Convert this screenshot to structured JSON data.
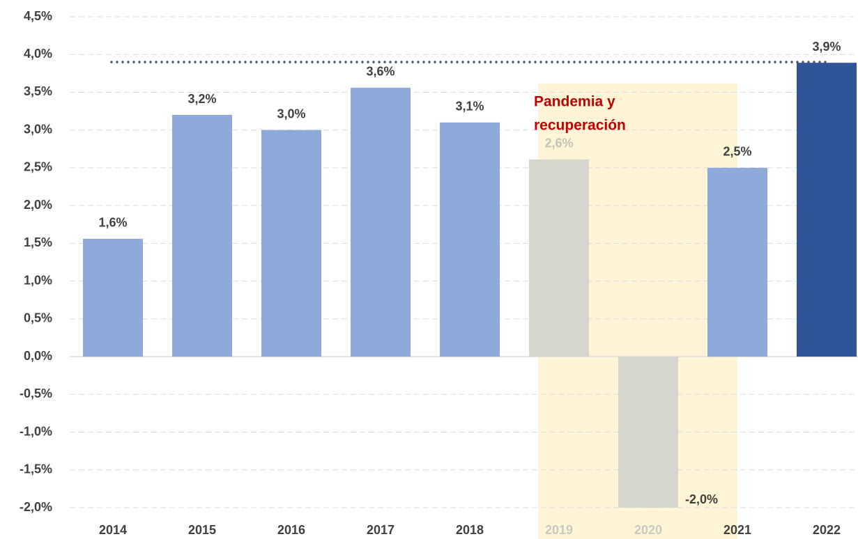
{
  "chart_data": {
    "type": "bar",
    "categories": [
      "2014",
      "2015",
      "2016",
      "2017",
      "2018",
      "2019",
      "2020",
      "2021",
      "2022"
    ],
    "values": [
      1.56,
      3.2,
      3.0,
      3.56,
      3.1,
      2.61,
      -2.0,
      2.5,
      3.89
    ],
    "value_labels": [
      "1,6%",
      "3,2%",
      "3,0%",
      "3,6%",
      "3,1%",
      "2,6%",
      "-2,0%",
      "2,5%",
      "3,9%"
    ],
    "colors": [
      "#8eaadb",
      "#8eaadb",
      "#8eaadb",
      "#8eaadb",
      "#8eaadb",
      "#d6d6ce",
      "#d6d6ce",
      "#8eaadb",
      "#2f5597"
    ],
    "label_colors": [
      "#404040",
      "#404040",
      "#404040",
      "#404040",
      "#404040",
      "#c4c2b6",
      "#404040",
      "#404040",
      "#404040"
    ],
    "category_colors": [
      "#404040",
      "#404040",
      "#404040",
      "#404040",
      "#404040",
      "#c8c8c8",
      "#c8c8c8",
      "#404040",
      "#404040"
    ],
    "ylim": [
      -2.0,
      4.5
    ],
    "yticks": [
      {
        "value": -2.0,
        "label": "-2,0%"
      },
      {
        "value": -1.5,
        "label": "-1,5%"
      },
      {
        "value": -1.0,
        "label": "-1,0%"
      },
      {
        "value": -0.5,
        "label": "-0,5%"
      },
      {
        "value": 0.0,
        "label": "0,0%"
      },
      {
        "value": 0.5,
        "label": "0,5%"
      },
      {
        "value": 1.0,
        "label": "1,0%"
      },
      {
        "value": 1.5,
        "label": "1,5%"
      },
      {
        "value": 2.0,
        "label": "2,0%"
      },
      {
        "value": 2.5,
        "label": "2,5%"
      },
      {
        "value": 3.0,
        "label": "3,0%"
      },
      {
        "value": 3.5,
        "label": "3,5%"
      },
      {
        "value": 4.0,
        "label": "4,0%"
      },
      {
        "value": 4.5,
        "label": "4,5%"
      }
    ],
    "grid": true,
    "reference_line": {
      "value": 3.9,
      "color": "#44546a"
    },
    "highlight_color": "#fff5d6",
    "annotation": [
      "Pandemia y",
      "recuperación"
    ],
    "annotation_color": "#c00000"
  }
}
